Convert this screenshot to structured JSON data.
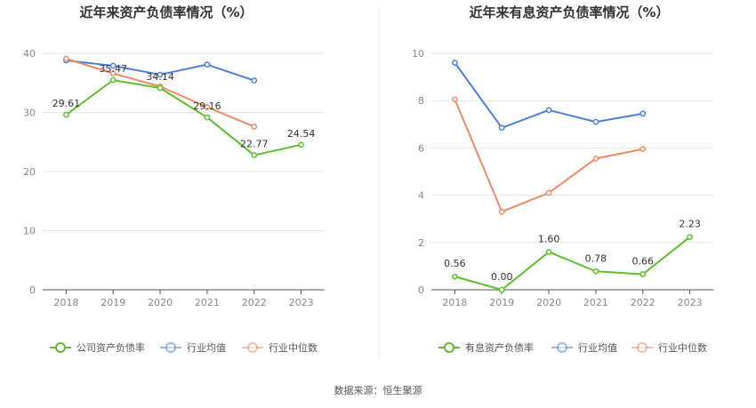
{
  "source_label": "数据来源：恒生聚源",
  "colors": {
    "green": "#5cc02c",
    "blue": "#4d7fe0",
    "orange": "#f08a64",
    "grid": "#e6e6e6",
    "axis": "#555555"
  },
  "chart_data": [
    {
      "type": "line",
      "title": "近年来资产负债率情况（%）",
      "xlabel": "",
      "ylabel": "",
      "categories": [
        "2018",
        "2019",
        "2020",
        "2021",
        "2022",
        "2023"
      ],
      "ylim": [
        0,
        40
      ],
      "yticks": [
        0,
        10,
        20,
        30,
        40
      ],
      "grid": true,
      "legend_position": "bottom",
      "series": [
        {
          "name": "公司资产负债率",
          "color": "#5cc02c",
          "labeled": true,
          "values": [
            29.61,
            35.47,
            34.14,
            29.16,
            22.77,
            24.54
          ],
          "labels": [
            "29.61",
            "35.47",
            "34.14",
            "29.16",
            "22.77",
            "24.54"
          ]
        },
        {
          "name": "行业均值",
          "color": "#4d7fe0",
          "labeled": false,
          "values": [
            38.8,
            37.9,
            36.4,
            38.1,
            35.4,
            null
          ]
        },
        {
          "name": "行业中位数",
          "color": "#f08a64",
          "labeled": false,
          "values": [
            39.1,
            36.6,
            34.4,
            30.9,
            27.6,
            null
          ]
        }
      ]
    },
    {
      "type": "line",
      "title": "近年来有息资产负债率情况（%）",
      "xlabel": "",
      "ylabel": "",
      "categories": [
        "2018",
        "2019",
        "2020",
        "2021",
        "2022",
        "2023"
      ],
      "ylim": [
        0,
        10
      ],
      "yticks": [
        0,
        2,
        4,
        6,
        8,
        10
      ],
      "grid": true,
      "legend_position": "bottom",
      "series": [
        {
          "name": "有息资产负债率",
          "color": "#5cc02c",
          "labeled": true,
          "values": [
            0.56,
            0.0,
            1.6,
            0.78,
            0.66,
            2.23
          ],
          "labels": [
            "0.56",
            "0.00",
            "1.60",
            "0.78",
            "0.66",
            "2.23"
          ]
        },
        {
          "name": "行业均值",
          "color": "#4d7fe0",
          "labeled": false,
          "values": [
            9.6,
            6.85,
            7.6,
            7.1,
            7.45,
            null
          ]
        },
        {
          "name": "行业中位数",
          "color": "#f08a64",
          "labeled": false,
          "values": [
            8.05,
            3.3,
            4.1,
            5.55,
            5.95,
            null
          ]
        }
      ]
    }
  ]
}
